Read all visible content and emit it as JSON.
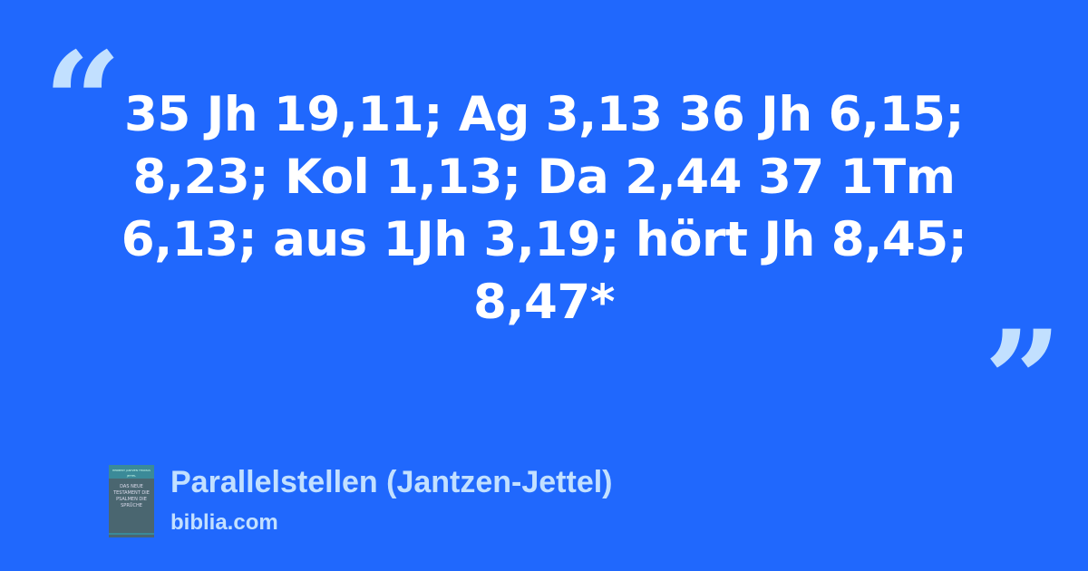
{
  "quote": {
    "open_mark": "“",
    "close_mark": "”",
    "text": "35 Jh 19,11; Ag 3,13 36 Jh 6,15; 8,23; Kol 1,13; Da 2,44 37 1Tm 6,13; aus 1Jh 3,19; hört Jh 8,45; 8,47*"
  },
  "source": {
    "title": "Parallelstellen (Jantzen-Jettel)",
    "site": "biblia.com",
    "cover": {
      "authors": "HERBERT JANTZEN THOMAS JETTEL",
      "title": "DAS NEUE TESTAMENT DIE PSALMEN DIE SPRÜCHE"
    }
  },
  "colors": {
    "background": "#2068fd",
    "accent": "#c2e0ff",
    "text": "#ffffff"
  }
}
